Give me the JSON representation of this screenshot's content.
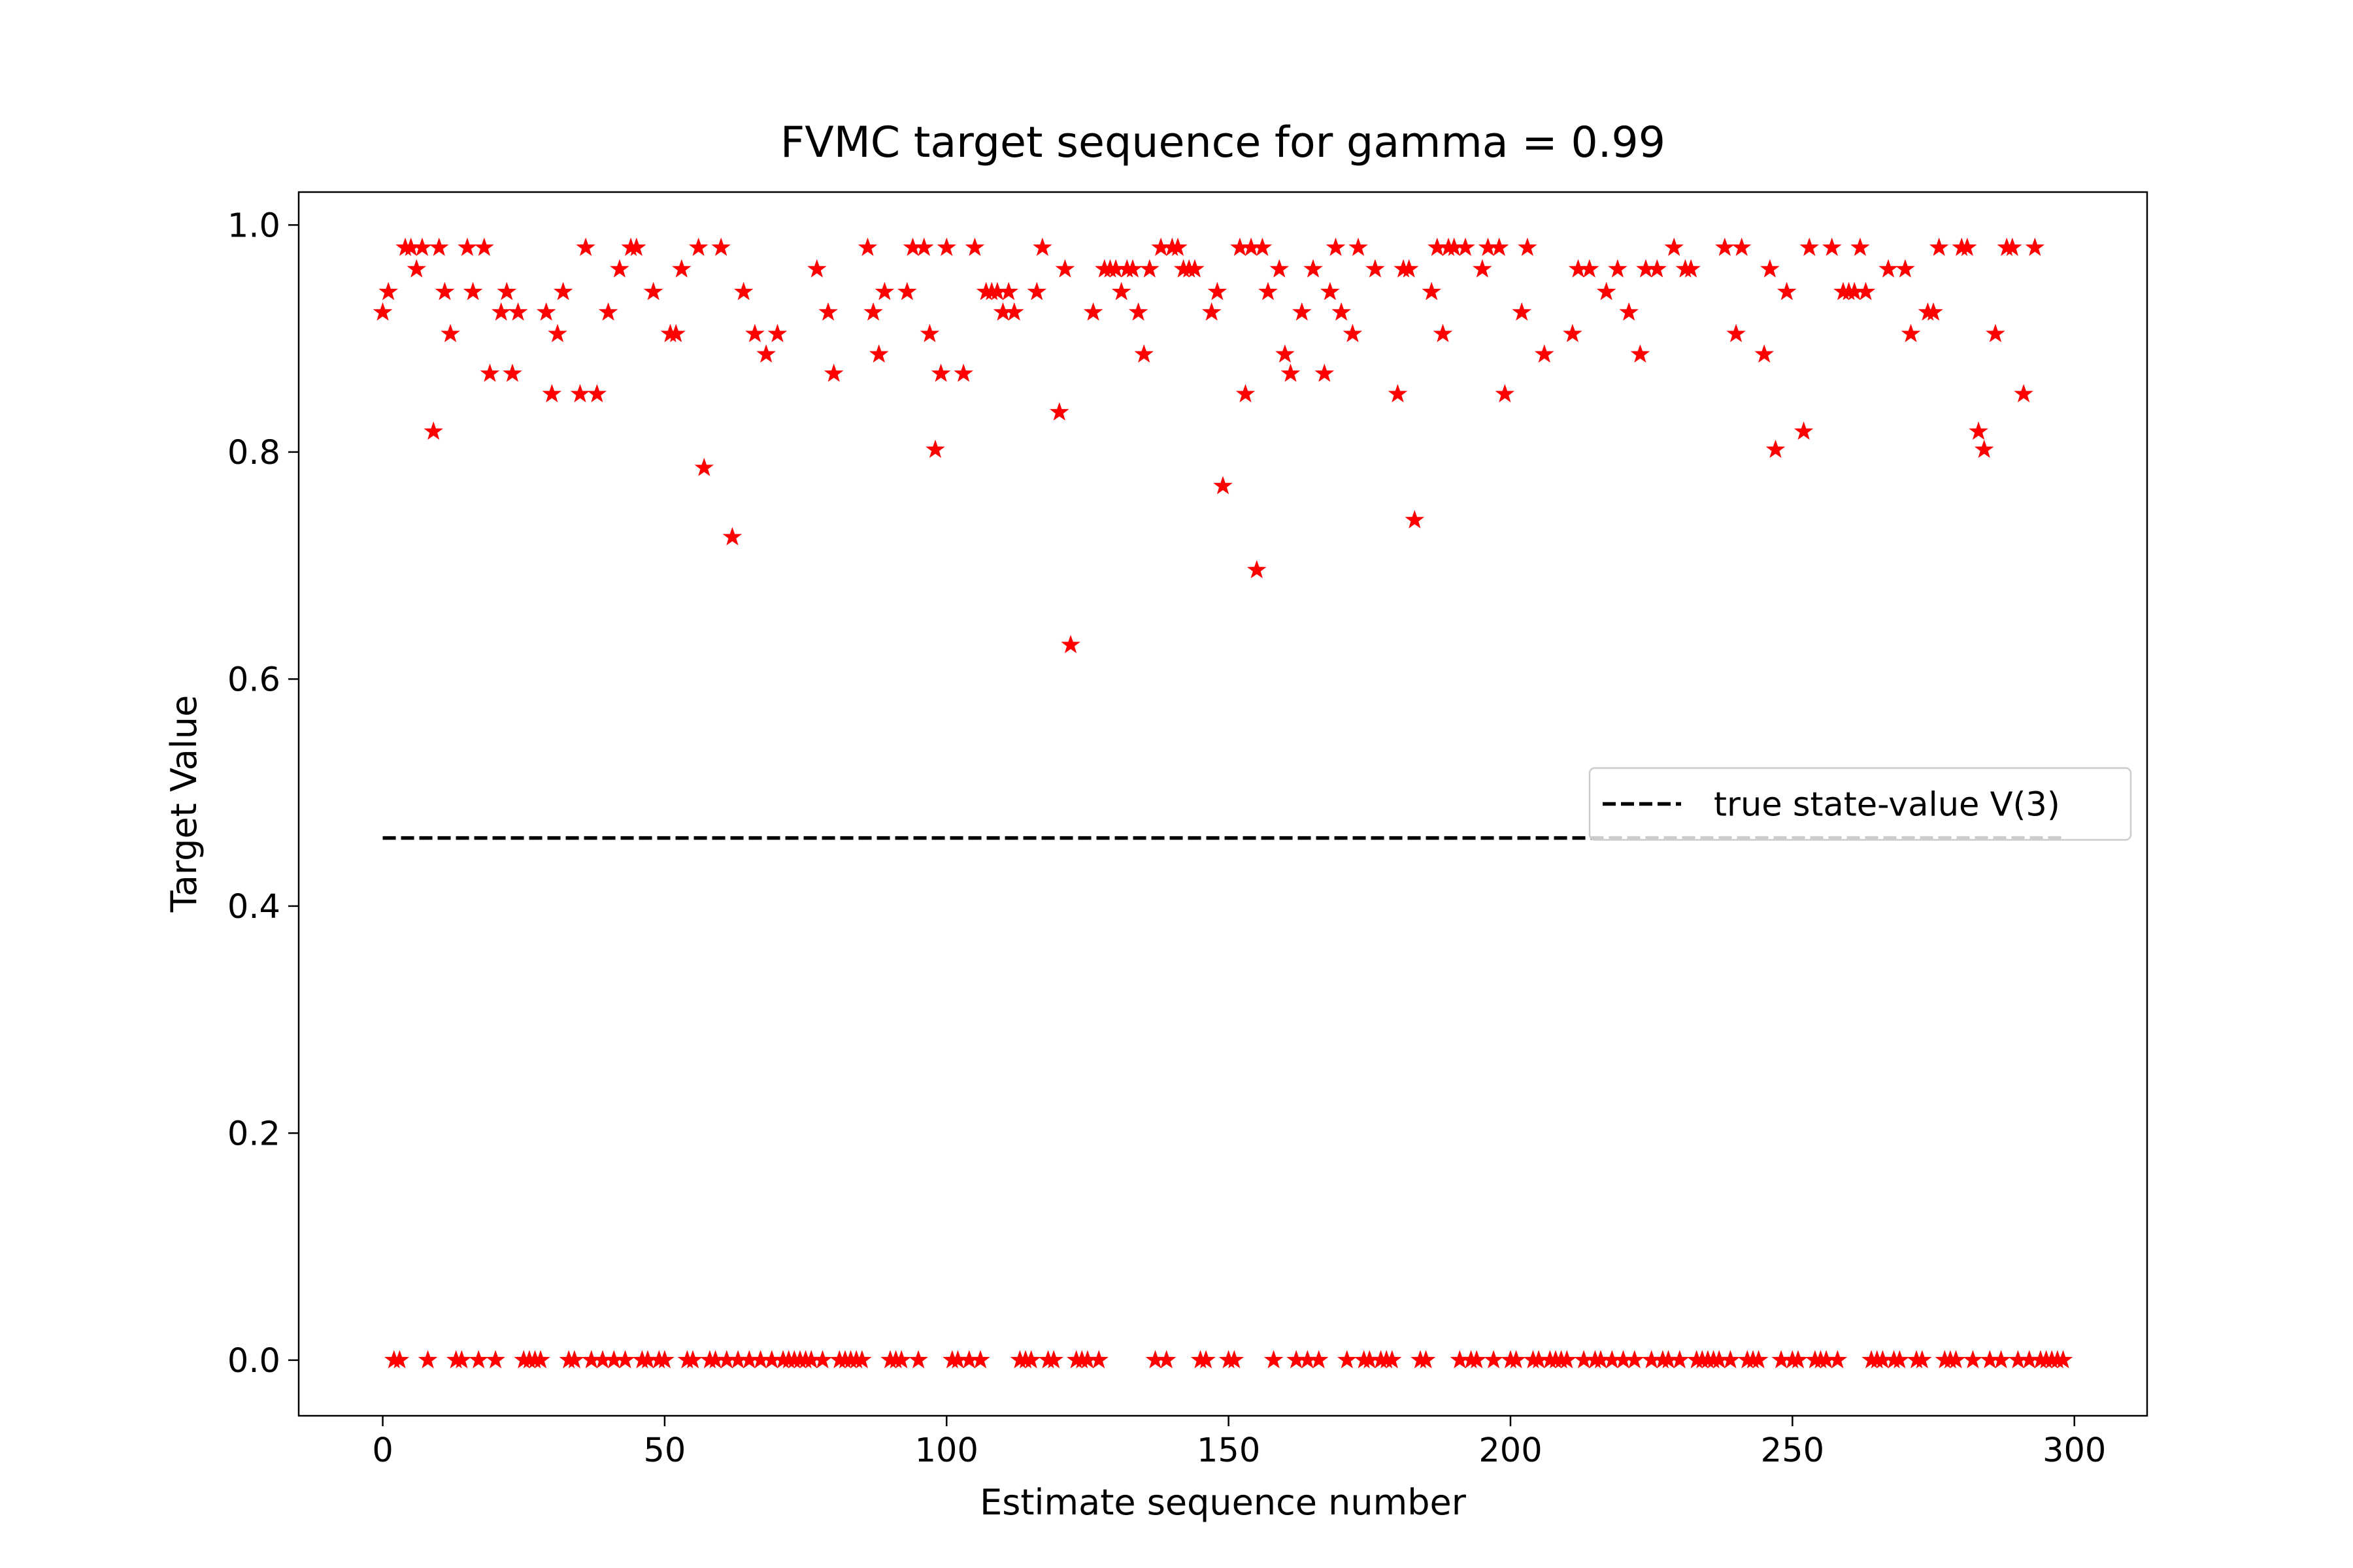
{
  "chart_data": {
    "type": "scatter",
    "title": "FVMC target sequence for gamma = 0.99",
    "xlabel": "Estimate sequence number",
    "ylabel": "Target Value",
    "color": "red",
    "marker": "star",
    "x": [
      0,
      1,
      2,
      3,
      4,
      5,
      6,
      7,
      8,
      9,
      10,
      11,
      12,
      13,
      14,
      15,
      16,
      17,
      18,
      19,
      20,
      21,
      22,
      23,
      24,
      25,
      26,
      27,
      28,
      29,
      30,
      31,
      32,
      33,
      34,
      35,
      36,
      37,
      38,
      39,
      40,
      41,
      42,
      43,
      44,
      45,
      46,
      47,
      48,
      49,
      50,
      51,
      52,
      53,
      54,
      55,
      56,
      57,
      58,
      59,
      60,
      61,
      62,
      63,
      64,
      65,
      66,
      67,
      68,
      69,
      70,
      71,
      72,
      73,
      74,
      75,
      76,
      77,
      78,
      79,
      80,
      81,
      82,
      83,
      84,
      85,
      86,
      87,
      88,
      89,
      90,
      91,
      92,
      93,
      94,
      95,
      96,
      97,
      98,
      99,
      100,
      101,
      102,
      103,
      104,
      105,
      106,
      107,
      108,
      109,
      110,
      111,
      112,
      113,
      114,
      115,
      116,
      117,
      118,
      119,
      120,
      121,
      122,
      123,
      124,
      125,
      126,
      127,
      128,
      129,
      130,
      131,
      132,
      133,
      134,
      135,
      136,
      137,
      138,
      139,
      140,
      141,
      142,
      143,
      144,
      145,
      146,
      147,
      148,
      149,
      150,
      151,
      152,
      153,
      154,
      155,
      156,
      157,
      158,
      159,
      160,
      161,
      162,
      163,
      164,
      165,
      166,
      167,
      168,
      169,
      170,
      171,
      172,
      173,
      174,
      175,
      176,
      177,
      178,
      179,
      180,
      181,
      182,
      183,
      184,
      185,
      186,
      187,
      188,
      189,
      190,
      191,
      192,
      193,
      194,
      195,
      196,
      197,
      198,
      199,
      200,
      201,
      202,
      203,
      204,
      205,
      206,
      207,
      208,
      209,
      210,
      211,
      212,
      213,
      214,
      215,
      216,
      217,
      218,
      219,
      220,
      221,
      222,
      223,
      224,
      225,
      226,
      227,
      228,
      229,
      230,
      231,
      232,
      233,
      234,
      235,
      236,
      237,
      238,
      239,
      240,
      241,
      242,
      243,
      244,
      245,
      246,
      247,
      248,
      249,
      250,
      251,
      252,
      253,
      254,
      255,
      256,
      257,
      258,
      259,
      260,
      261,
      262,
      263,
      264,
      265,
      266,
      267,
      268,
      269,
      270,
      271,
      272,
      273,
      274,
      275,
      276,
      277,
      278,
      279,
      280,
      281,
      282,
      283,
      284,
      285,
      286,
      287,
      288,
      289,
      290,
      291,
      292,
      293,
      294,
      295,
      296,
      297,
      298
    ],
    "values": [
      0.923,
      0.941,
      0,
      0,
      0.98,
      0.98,
      0.961,
      0.98,
      0,
      0.818,
      0.98,
      0.941,
      0.904,
      0,
      0,
      0.98,
      0.941,
      0,
      0.98,
      0.869,
      0,
      0.923,
      0.941,
      0.869,
      0.923,
      0,
      0,
      0,
      0,
      0.923,
      0.851,
      0.904,
      0.941,
      0,
      0,
      0.851,
      0.98,
      0,
      0.851,
      0,
      0.923,
      0,
      0.961,
      0,
      0.98,
      0.98,
      0,
      0,
      0.941,
      0,
      0,
      0.904,
      0.904,
      0.961,
      0,
      0,
      0.98,
      0.786,
      0,
      0,
      0.98,
      0,
      0.725,
      0,
      0.941,
      0,
      0.904,
      0,
      0.886,
      0,
      0.904,
      0,
      0,
      0,
      0,
      0,
      0,
      0.961,
      0,
      0.923,
      0.869,
      0,
      0,
      0,
      0,
      0,
      0.98,
      0.923,
      0.886,
      0.941,
      0,
      0,
      0,
      0.941,
      0.98,
      0,
      0.98,
      0.904,
      0.802,
      0.869,
      0.98,
      0,
      0,
      0.869,
      0,
      0.98,
      0,
      0.941,
      0.941,
      0.941,
      0.923,
      0.941,
      0.923,
      0,
      0,
      0,
      0.941,
      0.98,
      0,
      0,
      0.835,
      0.961,
      0.63,
      0,
      0,
      0,
      0.923,
      0,
      0.961,
      0.961,
      0.961,
      0.941,
      0.961,
      0.961,
      0.923,
      0.886,
      0.961,
      0,
      0.98,
      0,
      0.98,
      0.98,
      0.961,
      0.961,
      0.961,
      0,
      0,
      0.923,
      0.941,
      0.77,
      0,
      0,
      0.98,
      0.851,
      0.98,
      0.696,
      0.98,
      0.941,
      0,
      0.961,
      0.886,
      0.869,
      0,
      0.923,
      0,
      0.961,
      0,
      0.869,
      0.941,
      0.98,
      0.923,
      0,
      0.904,
      0.98,
      0,
      0,
      0.961,
      0,
      0,
      0,
      0.851,
      0.961,
      0.961,
      0.74,
      0,
      0,
      0.941,
      0.98,
      0.904,
      0.98,
      0.98,
      0,
      0.98,
      0,
      0,
      0.961,
      0.98,
      0,
      0.98,
      0.851,
      0,
      0,
      0.923,
      0.98,
      0,
      0,
      0.886,
      0,
      0,
      0,
      0,
      0.904,
      0.961,
      0,
      0.961,
      0,
      0,
      0.941,
      0,
      0.961,
      0,
      0.923,
      0,
      0.886,
      0.961,
      0,
      0.961,
      0,
      0,
      0.98,
      0,
      0.961,
      0.961,
      0,
      0,
      0,
      0,
      0,
      0.98,
      0,
      0.904,
      0.98,
      0,
      0,
      0,
      0.886,
      0.961,
      0.802,
      0,
      0.941,
      0,
      0,
      0.818,
      0.98,
      0,
      0,
      0,
      0.98,
      0,
      0.941,
      0.941,
      0.941,
      0.98,
      0.941,
      0,
      0,
      0,
      0.961,
      0,
      0,
      0.961,
      0.904,
      0,
      0,
      0.923,
      0.923,
      0.98,
      0,
      0,
      0,
      0.98,
      0.98,
      0,
      0.818,
      0.802,
      0,
      0.904,
      0,
      0.98,
      0.98,
      0,
      0.851,
      0,
      0.98,
      0,
      0,
      0,
      0,
      0
    ],
    "reference_lines": [
      {
        "name": "true state-value V(3)",
        "color": "black",
        "linestyle": "dashed",
        "x": [
          0,
          298
        ],
        "values": [
          0.46,
          0.46
        ]
      }
    ],
    "xlim": [
      -14.9,
      312.9
    ],
    "ylim": [
      -0.049,
      1.029
    ],
    "xticks": [
      0,
      50,
      100,
      150,
      200,
      250,
      300
    ],
    "yticks": [
      {
        "value": 0,
        "label": "0.0"
      },
      {
        "value": 0.2,
        "label": "0.2"
      },
      {
        "value": 0.4,
        "label": "0.4"
      },
      {
        "value": 0.6,
        "label": "0.6"
      },
      {
        "value": 0.8,
        "label": "0.8"
      },
      {
        "value": 1,
        "label": "1.0"
      }
    ],
    "grid": false,
    "legend": "center right"
  }
}
